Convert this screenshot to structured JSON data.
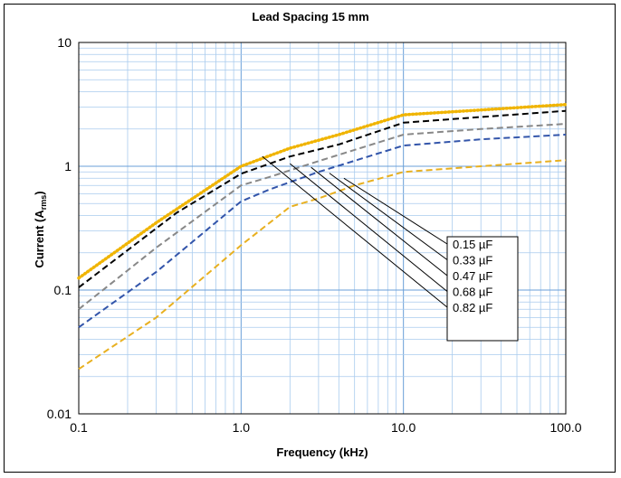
{
  "chart_data": {
    "type": "line",
    "title": "Lead Spacing 15 mm",
    "xlabel": "Frequency (kHz)",
    "ylabel_main": "Current (A",
    "ylabel_sub": "rms",
    "ylabel_close": ")",
    "x_scale": "log",
    "y_scale": "log",
    "xlim": [
      0.1,
      100
    ],
    "ylim": [
      0.01,
      10
    ],
    "x_ticks": [
      {
        "value": 0.1,
        "label": "0.1"
      },
      {
        "value": 1,
        "label": "1.0"
      },
      {
        "value": 10,
        "label": "10.0"
      },
      {
        "value": 100,
        "label": "100.0"
      }
    ],
    "y_ticks": [
      {
        "value": 0.01,
        "label": "0.01"
      },
      {
        "value": 0.1,
        "label": "0.1"
      },
      {
        "value": 1,
        "label": "1"
      },
      {
        "value": 10,
        "label": "10"
      }
    ],
    "grid": true,
    "legend_position": "center-right",
    "series": [
      {
        "name": "0.15  µF",
        "color": "#e8b020",
        "style": "dashed",
        "points": [
          [
            0.1,
            0.023
          ],
          [
            0.3,
            0.06
          ],
          [
            1,
            0.23
          ],
          [
            2,
            0.47
          ],
          [
            3,
            0.55
          ],
          [
            5,
            0.7
          ],
          [
            10,
            0.9
          ],
          [
            30,
            1.0
          ],
          [
            100,
            1.12
          ]
        ]
      },
      {
        "name": "0.33  µF",
        "color": "#3355aa",
        "style": "dashed",
        "points": [
          [
            0.1,
            0.05
          ],
          [
            0.3,
            0.14
          ],
          [
            1,
            0.52
          ],
          [
            1.5,
            0.65
          ],
          [
            3,
            0.9
          ],
          [
            10,
            1.47
          ],
          [
            30,
            1.65
          ],
          [
            100,
            1.8
          ]
        ]
      },
      {
        "name": "0.47  µF",
        "color": "#888888",
        "style": "dashed",
        "points": [
          [
            0.1,
            0.07
          ],
          [
            0.3,
            0.22
          ],
          [
            1,
            0.7
          ],
          [
            1.5,
            0.82
          ],
          [
            3,
            1.1
          ],
          [
            10,
            1.8
          ],
          [
            30,
            2.0
          ],
          [
            100,
            2.2
          ]
        ]
      },
      {
        "name": "0.68  µF",
        "color": "#000000",
        "style": "dashed",
        "points": [
          [
            0.1,
            0.105
          ],
          [
            0.4,
            0.42
          ],
          [
            1,
            0.87
          ],
          [
            2,
            1.2
          ],
          [
            4,
            1.5
          ],
          [
            10,
            2.25
          ],
          [
            30,
            2.5
          ],
          [
            100,
            2.8
          ]
        ]
      },
      {
        "name": "0.82  µF",
        "color": "#f0b400",
        "style": "dotted",
        "points": [
          [
            0.1,
            0.125
          ],
          [
            0.3,
            0.35
          ],
          [
            1,
            1.0
          ],
          [
            2,
            1.4
          ],
          [
            4,
            1.8
          ],
          [
            10,
            2.6
          ],
          [
            30,
            2.85
          ],
          [
            100,
            3.15
          ]
        ]
      }
    ],
    "legend_lines": [
      {
        "from": [
          1.35,
          1.2
        ],
        "label_index": 4
      },
      {
        "from": [
          2.0,
          1.05
        ],
        "label_index": 3
      },
      {
        "from": [
          2.7,
          0.98
        ],
        "label_index": 2
      },
      {
        "from": [
          3.5,
          0.88
        ],
        "label_index": 1
      },
      {
        "from": [
          4.3,
          0.8
        ],
        "label_index": 0
      }
    ]
  }
}
